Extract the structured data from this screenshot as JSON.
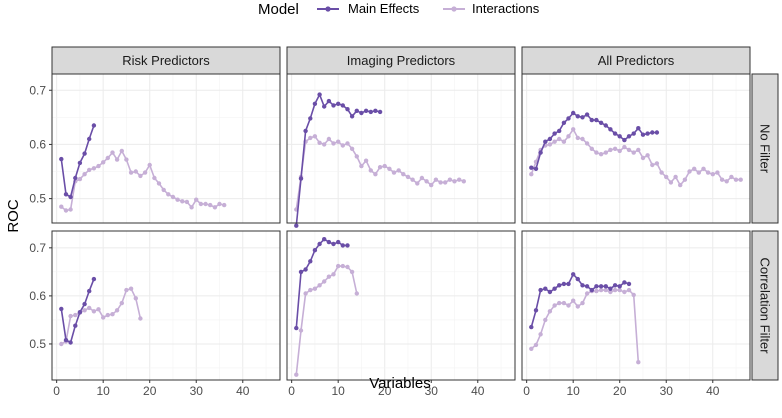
{
  "chart_data": {
    "type": "line",
    "xlabel": "Variables",
    "ylabel": "ROC",
    "legend": {
      "title": "Model",
      "position": "top",
      "entries": [
        {
          "label": "Main Effects",
          "color": "#6a4ea7"
        },
        {
          "label": "Interactions",
          "color": "#c6afd6"
        }
      ]
    },
    "columns": [
      "Risk Predictors",
      "Imaging Predictors",
      "All Predictors"
    ],
    "rows": [
      "No Filter",
      "Correlation Filter"
    ],
    "xlim": [
      -1,
      48
    ],
    "x_ticks": [
      0,
      10,
      20,
      30,
      40
    ],
    "ylim_rows": [
      [
        0.455,
        0.73
      ],
      [
        0.425,
        0.735
      ]
    ],
    "y_ticks": [
      0.5,
      0.6,
      0.7
    ],
    "colors": {
      "panel_border": "#333333",
      "strip_fill": "#d9d9d9",
      "grid": "#ebebeb"
    },
    "panels": [
      {
        "row": 0,
        "col": 0,
        "series": [
          {
            "name": "Main Effects",
            "x": [
              1,
              2,
              3,
              4,
              5,
              6,
              7,
              8
            ],
            "y": [
              0.573,
              0.508,
              0.503,
              0.538,
              0.566,
              0.583,
              0.61,
              0.635
            ]
          },
          {
            "name": "Interactions",
            "x": [
              1,
              2,
              3,
              4,
              5,
              6,
              7,
              8,
              9,
              10,
              11,
              12,
              13,
              14,
              15,
              16,
              17,
              18,
              19,
              20,
              21,
              22,
              23,
              24,
              25,
              26,
              27,
              28,
              29,
              30,
              31,
              32,
              33,
              34,
              35,
              36
            ],
            "y": [
              0.485,
              0.478,
              0.48,
              0.532,
              0.536,
              0.545,
              0.553,
              0.556,
              0.56,
              0.567,
              0.575,
              0.585,
              0.572,
              0.588,
              0.572,
              0.548,
              0.55,
              0.542,
              0.548,
              0.562,
              0.538,
              0.528,
              0.516,
              0.508,
              0.503,
              0.498,
              0.495,
              0.494,
              0.484,
              0.498,
              0.49,
              0.49,
              0.488,
              0.484,
              0.49,
              0.488
            ]
          }
        ]
      },
      {
        "row": 0,
        "col": 1,
        "series": [
          {
            "name": "Main Effects",
            "x": [
              1,
              2,
              3,
              4,
              5,
              6,
              7,
              8,
              9,
              10,
              11,
              12,
              13,
              14,
              15,
              16,
              17,
              18,
              19
            ],
            "y": [
              0.45,
              0.537,
              0.625,
              0.648,
              0.675,
              0.692,
              0.67,
              0.68,
              0.672,
              0.675,
              0.672,
              0.665,
              0.652,
              0.662,
              0.658,
              0.662,
              0.66,
              0.662,
              0.66
            ]
          },
          {
            "name": "Interactions",
            "x": [
              1,
              2,
              3,
              4,
              5,
              6,
              7,
              8,
              9,
              10,
              11,
              12,
              13,
              14,
              15,
              16,
              17,
              18,
              19,
              20,
              21,
              22,
              23,
              24,
              25,
              26,
              27,
              28,
              29,
              30,
              31,
              32,
              33,
              34,
              35,
              36,
              37
            ],
            "y": [
              0.48,
              0.54,
              0.605,
              0.612,
              0.615,
              0.603,
              0.6,
              0.61,
              0.602,
              0.605,
              0.598,
              0.602,
              0.592,
              0.578,
              0.56,
              0.57,
              0.552,
              0.545,
              0.558,
              0.56,
              0.555,
              0.548,
              0.552,
              0.545,
              0.54,
              0.535,
              0.528,
              0.538,
              0.532,
              0.525,
              0.535,
              0.53,
              0.53,
              0.535,
              0.532,
              0.535,
              0.532
            ]
          }
        ]
      },
      {
        "row": 0,
        "col": 2,
        "series": [
          {
            "name": "Main Effects",
            "x": [
              1,
              2,
              3,
              4,
              5,
              6,
              7,
              8,
              9,
              10,
              11,
              12,
              13,
              14,
              15,
              16,
              17,
              18,
              19,
              20,
              21,
              22,
              23,
              24,
              25,
              26,
              27,
              28
            ],
            "y": [
              0.557,
              0.555,
              0.585,
              0.605,
              0.61,
              0.62,
              0.625,
              0.64,
              0.648,
              0.658,
              0.652,
              0.65,
              0.655,
              0.645,
              0.645,
              0.64,
              0.635,
              0.628,
              0.62,
              0.615,
              0.608,
              0.615,
              0.62,
              0.63,
              0.618,
              0.62,
              0.622,
              0.622
            ]
          },
          {
            "name": "Interactions",
            "x": [
              1,
              2,
              3,
              4,
              5,
              6,
              7,
              8,
              9,
              10,
              11,
              12,
              13,
              14,
              15,
              16,
              17,
              18,
              19,
              20,
              21,
              22,
              23,
              24,
              25,
              26,
              27,
              28,
              29,
              30,
              31,
              32,
              33,
              34,
              35,
              36,
              37,
              38,
              39,
              40,
              41,
              42,
              43,
              44,
              45,
              46
            ],
            "y": [
              0.545,
              0.568,
              0.59,
              0.598,
              0.6,
              0.605,
              0.61,
              0.605,
              0.615,
              0.628,
              0.612,
              0.61,
              0.602,
              0.592,
              0.585,
              0.582,
              0.585,
              0.59,
              0.592,
              0.588,
              0.595,
              0.59,
              0.585,
              0.59,
              0.575,
              0.58,
              0.562,
              0.565,
              0.548,
              0.54,
              0.53,
              0.54,
              0.525,
              0.535,
              0.55,
              0.555,
              0.548,
              0.555,
              0.548,
              0.545,
              0.548,
              0.535,
              0.532,
              0.54,
              0.535,
              0.535
            ]
          }
        ]
      },
      {
        "row": 1,
        "col": 0,
        "series": [
          {
            "name": "Main Effects",
            "x": [
              1,
              2,
              3,
              4,
              5,
              6,
              7,
              8
            ],
            "y": [
              0.573,
              0.508,
              0.503,
              0.538,
              0.566,
              0.583,
              0.61,
              0.635
            ]
          },
          {
            "name": "Interactions",
            "x": [
              1,
              2,
              3,
              4,
              5,
              6,
              7,
              8,
              9,
              10,
              11,
              12,
              13,
              14,
              15,
              16,
              17,
              18
            ],
            "y": [
              0.5,
              0.505,
              0.558,
              0.56,
              0.565,
              0.57,
              0.575,
              0.568,
              0.572,
              0.555,
              0.56,
              0.562,
              0.57,
              0.585,
              0.612,
              0.615,
              0.595,
              0.553
            ]
          }
        ]
      },
      {
        "row": 1,
        "col": 1,
        "series": [
          {
            "name": "Main Effects",
            "x": [
              1,
              2,
              3,
              4,
              5,
              6,
              7,
              8,
              9,
              10,
              11,
              12
            ],
            "y": [
              0.533,
              0.65,
              0.655,
              0.672,
              0.695,
              0.708,
              0.718,
              0.712,
              0.708,
              0.712,
              0.705,
              0.705
            ]
          },
          {
            "name": "Interactions",
            "x": [
              1,
              2,
              3,
              4,
              5,
              6,
              7,
              8,
              9,
              10,
              11,
              12,
              13,
              14
            ],
            "y": [
              0.436,
              0.528,
              0.605,
              0.612,
              0.615,
              0.622,
              0.63,
              0.64,
              0.645,
              0.662,
              0.662,
              0.66,
              0.65,
              0.605
            ]
          }
        ]
      },
      {
        "row": 1,
        "col": 2,
        "series": [
          {
            "name": "Main Effects",
            "x": [
              1,
              2,
              3,
              4,
              5,
              6,
              7,
              8,
              9,
              10,
              11,
              12,
              13,
              14,
              15,
              16,
              17,
              18,
              19,
              20,
              21,
              22
            ],
            "y": [
              0.535,
              0.57,
              0.612,
              0.615,
              0.608,
              0.615,
              0.622,
              0.625,
              0.625,
              0.645,
              0.635,
              0.622,
              0.62,
              0.612,
              0.62,
              0.62,
              0.62,
              0.615,
              0.622,
              0.62,
              0.628,
              0.625
            ]
          },
          {
            "name": "Interactions",
            "x": [
              1,
              2,
              3,
              4,
              5,
              6,
              7,
              8,
              9,
              10,
              11,
              12,
              13,
              14,
              15,
              16,
              17,
              18,
              19,
              20,
              21,
              22,
              23,
              24
            ],
            "y": [
              0.49,
              0.498,
              0.52,
              0.55,
              0.568,
              0.58,
              0.585,
              0.585,
              0.58,
              0.59,
              0.578,
              0.585,
              0.605,
              0.61,
              0.61,
              0.612,
              0.612,
              0.608,
              0.612,
              0.612,
              0.608,
              0.612,
              0.602,
              0.462
            ]
          }
        ]
      }
    ]
  }
}
